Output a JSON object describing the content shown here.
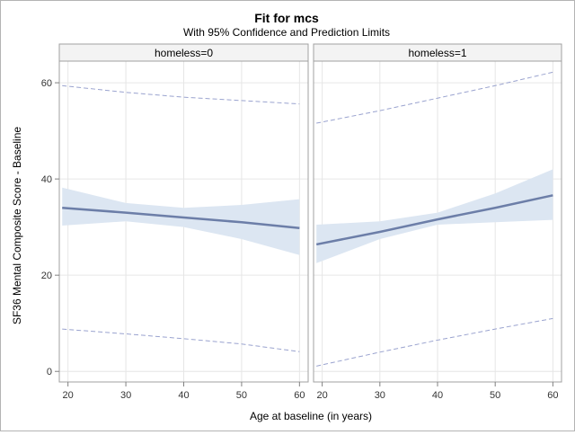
{
  "chart_data": {
    "type": "line",
    "title": "Fit for mcs",
    "subtitle": "With 95% Confidence and Prediction Limits",
    "xlabel": "Age at baseline (in years)",
    "ylabel": "SF36 Mental Composite Score - Baseline",
    "xlim": [
      18.5,
      61.5
    ],
    "ylim": [
      -2.2,
      64.5
    ],
    "x_ticks": [
      20,
      30,
      40,
      50,
      60
    ],
    "y_ticks": [
      0,
      20,
      40,
      60
    ],
    "grid": true,
    "colors": {
      "fit": "#6c7ea8",
      "band": "#dce6f2",
      "prediction": "#9aa3cf",
      "grid": "#e6e6e6",
      "header": "#f3f3f3"
    },
    "panels": [
      {
        "label": "homeless=0",
        "x": [
          19,
          30,
          40,
          50,
          60
        ],
        "fit": [
          34.0,
          33.0,
          32.0,
          31.0,
          29.8
        ],
        "clm_lower": [
          30.3,
          31.2,
          30.0,
          27.5,
          24.2
        ],
        "clm_upper": [
          38.2,
          35.0,
          34.0,
          34.6,
          35.8
        ],
        "pred_lower": [
          8.8,
          7.8,
          6.8,
          5.7,
          4.1
        ],
        "pred_upper": [
          59.4,
          58.0,
          57.0,
          56.3,
          55.6
        ]
      },
      {
        "label": "homeless=1",
        "x": [
          19,
          30,
          40,
          50,
          60
        ],
        "fit": [
          26.4,
          29.0,
          31.6,
          34.0,
          36.6
        ],
        "clm_lower": [
          22.5,
          27.5,
          30.5,
          31.0,
          31.5
        ],
        "clm_upper": [
          30.5,
          31.2,
          33.0,
          37.0,
          42.0
        ],
        "pred_lower": [
          1.1,
          4.0,
          6.5,
          8.8,
          11.0
        ],
        "pred_upper": [
          51.6,
          54.2,
          56.8,
          59.4,
          62.2
        ]
      }
    ]
  }
}
